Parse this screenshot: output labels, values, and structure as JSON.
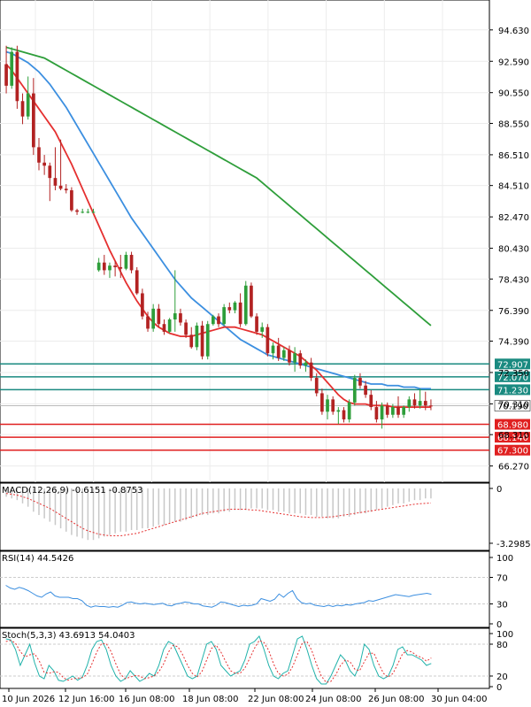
{
  "chart_data": [
    {
      "type": "candlestick",
      "panel": "price",
      "ylim": [
        65.5,
        96.0
      ],
      "y_ticks": [
        "94.630",
        "92.590",
        "90.550",
        "88.550",
        "86.510",
        "84.510",
        "82.470",
        "80.430",
        "78.430",
        "76.390",
        "74.390",
        "72.350",
        "70.310",
        "68.310",
        "66.270"
      ],
      "x_ticks": [
        "10 Jun 2026",
        "12 Jun 16:00",
        "16 Jun 08:00",
        "18 Jun 08:00",
        "22 Jun 08:00",
        "24 Jun 08:00",
        "26 Jun 08:00",
        "30 Jun 04:00"
      ],
      "candles": [
        [
          92.4,
          93.6,
          90.5,
          91.0
        ],
        [
          91.0,
          93.5,
          90.8,
          93.2
        ],
        [
          93.2,
          93.6,
          89.5,
          90.0
        ],
        [
          90.0,
          90.5,
          88.5,
          89.0
        ],
        [
          89.0,
          91.6,
          88.8,
          90.5
        ],
        [
          90.5,
          91.5,
          86.5,
          87.0
        ],
        [
          87.0,
          87.6,
          85.5,
          86.0
        ],
        [
          86.0,
          86.5,
          85.2,
          85.8
        ],
        [
          85.8,
          86.0,
          83.5,
          85.0
        ],
        [
          85.0,
          87.0,
          84.2,
          84.5
        ],
        [
          84.5,
          87.5,
          84.2,
          84.3
        ],
        [
          84.3,
          84.6,
          84.0,
          84.2
        ],
        [
          84.2,
          84.4,
          82.8,
          82.9
        ],
        [
          82.9,
          83.0,
          82.6,
          82.8
        ],
        [
          82.8,
          83.0,
          82.7,
          82.8
        ],
        [
          82.8,
          83.0,
          82.7,
          82.8
        ],
        [
          82.8,
          83.0,
          82.7,
          82.8
        ],
        [
          79.0,
          79.8,
          78.9,
          79.5
        ],
        [
          79.5,
          80.0,
          78.7,
          79.0
        ],
        [
          79.0,
          79.5,
          78.5,
          79.3
        ],
        [
          79.3,
          79.6,
          78.6,
          79.2
        ],
        [
          79.2,
          80.0,
          78.5,
          79.1
        ],
        [
          79.1,
          80.2,
          79.0,
          80.0
        ],
        [
          80.0,
          80.2,
          78.8,
          79.0
        ],
        [
          79.0,
          79.2,
          77.4,
          77.5
        ],
        [
          77.5,
          77.8,
          75.8,
          76.0
        ],
        [
          76.0,
          76.3,
          75.0,
          75.2
        ],
        [
          75.2,
          76.8,
          75.0,
          76.5
        ],
        [
          76.5,
          76.8,
          75.3,
          75.5
        ],
        [
          75.5,
          75.8,
          74.8,
          75.0
        ],
        [
          75.0,
          75.9,
          74.9,
          75.8
        ],
        [
          75.8,
          79.0,
          75.0,
          76.2
        ],
        [
          76.2,
          76.5,
          75.4,
          75.6
        ],
        [
          75.6,
          75.8,
          74.6,
          74.8
        ],
        [
          74.8,
          75.3,
          73.9,
          74.0
        ],
        [
          74.0,
          75.6,
          73.8,
          75.4
        ],
        [
          75.4,
          75.7,
          73.2,
          73.4
        ],
        [
          73.4,
          75.7,
          73.2,
          75.5
        ],
        [
          75.5,
          76.1,
          75.4,
          76.0
        ],
        [
          76.0,
          76.2,
          75.3,
          75.5
        ],
        [
          75.5,
          76.8,
          75.4,
          76.6
        ],
        [
          76.6,
          76.9,
          76.2,
          76.4
        ],
        [
          76.4,
          77.0,
          76.2,
          76.9
        ],
        [
          76.9,
          77.5,
          75.3,
          75.5
        ],
        [
          75.5,
          78.3,
          75.4,
          78.0
        ],
        [
          78.0,
          78.2,
          75.9,
          76.0
        ],
        [
          76.0,
          76.2,
          74.8,
          75.0
        ],
        [
          75.0,
          75.6,
          74.6,
          75.3
        ],
        [
          75.3,
          75.5,
          73.4,
          73.6
        ],
        [
          73.6,
          74.3,
          73.2,
          74.1
        ],
        [
          74.1,
          74.6,
          73.1,
          73.3
        ],
        [
          73.3,
          74.0,
          73.1,
          73.8
        ],
        [
          73.8,
          74.1,
          72.8,
          73.0
        ],
        [
          73.0,
          74.0,
          72.4,
          73.6
        ],
        [
          73.6,
          73.8,
          72.6,
          72.8
        ],
        [
          72.8,
          73.2,
          72.4,
          73.0
        ],
        [
          73.0,
          73.3,
          71.8,
          72.0
        ],
        [
          72.0,
          72.3,
          70.8,
          71.0
        ],
        [
          71.0,
          71.3,
          69.6,
          69.8
        ],
        [
          69.8,
          70.9,
          69.3,
          70.6
        ],
        [
          70.6,
          70.8,
          69.6,
          69.8
        ],
        [
          69.8,
          70.1,
          69.0,
          69.9
        ],
        [
          69.9,
          70.1,
          69.1,
          69.3
        ],
        [
          69.3,
          70.6,
          69.1,
          70.4
        ],
        [
          70.4,
          72.2,
          70.2,
          72.0
        ],
        [
          72.0,
          72.3,
          71.3,
          71.5
        ],
        [
          71.5,
          71.8,
          70.7,
          70.9
        ],
        [
          70.9,
          71.2,
          69.9,
          70.1
        ],
        [
          70.1,
          70.5,
          69.1,
          69.3
        ],
        [
          69.3,
          70.4,
          68.7,
          70.2
        ],
        [
          70.2,
          70.4,
          69.4,
          69.6
        ],
        [
          69.6,
          70.3,
          69.4,
          70.1
        ],
        [
          70.1,
          70.8,
          69.4,
          69.6
        ],
        [
          69.6,
          70.2,
          69.4,
          70.1
        ],
        [
          70.1,
          70.8,
          69.8,
          70.6
        ],
        [
          70.6,
          71.0,
          70.0,
          70.2
        ],
        [
          70.2,
          71.3,
          70.0,
          70.5
        ],
        [
          70.5,
          71.1,
          69.9,
          70.2
        ],
        [
          70.2,
          70.6,
          69.9,
          70.19
        ]
      ],
      "sma_red": [
        92.4,
        92.0,
        91.5,
        91.0,
        90.5,
        90.0,
        89.5,
        89.0,
        88.5,
        88.0,
        87.3,
        86.6,
        85.9,
        85.1,
        84.3,
        83.5,
        82.7,
        81.9,
        81.1,
        80.3,
        79.6,
        78.9,
        78.2,
        77.6,
        77.0,
        76.5,
        76.0,
        75.6,
        75.3,
        75.1,
        74.9,
        74.8,
        74.7,
        74.7,
        74.7,
        74.8,
        74.9,
        75.0,
        75.1,
        75.2,
        75.3,
        75.3,
        75.3,
        75.2,
        75.1,
        75.0,
        74.9,
        74.8,
        74.6,
        74.4,
        74.2,
        74.0,
        73.8,
        73.6,
        73.4,
        73.1,
        72.8,
        72.5,
        72.1,
        71.7,
        71.3,
        70.9,
        70.6,
        70.4,
        70.3,
        70.3,
        70.3,
        70.2,
        70.2,
        70.2,
        70.2,
        70.1,
        70.1,
        70.1,
        70.1,
        70.1,
        70.1,
        70.1,
        70.1
      ],
      "sma_blue": [
        93.2,
        93.1,
        92.9,
        92.7,
        92.5,
        92.2,
        91.9,
        91.5,
        91.1,
        90.6,
        90.1,
        89.6,
        89.0,
        88.4,
        87.8,
        87.2,
        86.6,
        86.0,
        85.4,
        84.8,
        84.2,
        83.6,
        83.0,
        82.4,
        81.9,
        81.4,
        80.9,
        80.4,
        79.9,
        79.4,
        78.9,
        78.4,
        78.0,
        77.6,
        77.2,
        76.9,
        76.6,
        76.3,
        76.0,
        75.7,
        75.4,
        75.1,
        74.8,
        74.5,
        74.3,
        74.1,
        73.9,
        73.7,
        73.5,
        73.4,
        73.3,
        73.2,
        73.1,
        73.0,
        72.9,
        72.8,
        72.7,
        72.6,
        72.5,
        72.4,
        72.3,
        72.2,
        72.1,
        72.0,
        71.9,
        71.8,
        71.7,
        71.6,
        71.6,
        71.6,
        71.5,
        71.5,
        71.5,
        71.4,
        71.4,
        71.4,
        71.3,
        71.3,
        71.3
      ],
      "sma_green": [
        93.5,
        93.4,
        93.3,
        93.2,
        93.1,
        93.0,
        92.9,
        92.8,
        92.6,
        92.4,
        92.2,
        92.0,
        91.8,
        91.6,
        91.4,
        91.2,
        91.0,
        90.8,
        90.6,
        90.4,
        90.2,
        90.0,
        89.8,
        89.6,
        89.4,
        89.2,
        89.0,
        88.8,
        88.6,
        88.4,
        88.2,
        88.0,
        87.8,
        87.6,
        87.4,
        87.2,
        87.0,
        86.8,
        86.6,
        86.4,
        86.2,
        86.0,
        85.8,
        85.6,
        85.4,
        85.2,
        85.0,
        84.7,
        84.4,
        84.1,
        83.8,
        83.5,
        83.2,
        82.9,
        82.6,
        82.3,
        82.0,
        81.7,
        81.4,
        81.1,
        80.8,
        80.5,
        80.2,
        79.9,
        79.6,
        79.3,
        79.0,
        78.7,
        78.4,
        78.1,
        77.8,
        77.5,
        77.2,
        76.9,
        76.6,
        76.3,
        76.0,
        75.7,
        75.4
      ],
      "levels": [
        {
          "value": 72.907,
          "label": "72.907",
          "color": "#1a8a80"
        },
        {
          "value": 72.07,
          "label": "72.070",
          "color": "#1a8a80"
        },
        {
          "value": 71.23,
          "label": "71.230",
          "color": "#1a8a80"
        },
        {
          "value": 68.98,
          "label": "68.980",
          "color": "#e02020"
        },
        {
          "value": 68.14,
          "label": "68.140",
          "color": "#e02020"
        },
        {
          "value": 67.3,
          "label": "67.300",
          "color": "#e02020"
        }
      ],
      "current_price": "70.190",
      "colors": {
        "bull": "#2e9e3a",
        "bear": "#b22222",
        "red_ma": "#e53030",
        "blue_ma": "#3c8fe0",
        "green_ma": "#2e9e3a"
      }
    },
    {
      "type": "bar",
      "panel": "MACD",
      "label": "MACD(12,26,9) -0.6151 -0.8753",
      "y_ticks": [
        "0",
        "-3.2985"
      ],
      "ylim": [
        -3.3,
        0
      ],
      "histogram": [
        -0.5,
        -0.6,
        -0.7,
        -0.9,
        -1.1,
        -1.4,
        -1.6,
        -1.8,
        -2.0,
        -2.2,
        -2.4,
        -2.6,
        -2.8,
        -2.9,
        -3.0,
        -3.1,
        -3.1,
        -3.0,
        -2.9,
        -2.8,
        -2.7,
        -2.6,
        -2.6,
        -2.5,
        -2.5,
        -2.4,
        -2.4,
        -2.3,
        -2.2,
        -2.2,
        -2.1,
        -2.0,
        -2.0,
        -1.9,
        -1.8,
        -1.7,
        -1.6,
        -1.6,
        -1.5,
        -1.5,
        -1.4,
        -1.4,
        -1.3,
        -1.3,
        -1.3,
        -1.2,
        -1.2,
        -1.2,
        -1.3,
        -1.3,
        -1.4,
        -1.4,
        -1.5,
        -1.5,
        -1.5,
        -1.6,
        -1.6,
        -1.7,
        -1.7,
        -1.8,
        -1.8,
        -1.8,
        -1.7,
        -1.7,
        -1.6,
        -1.5,
        -1.5,
        -1.4,
        -1.3,
        -1.2,
        -1.1,
        -1.0,
        -0.9,
        -0.9,
        -0.8,
        -0.7,
        -0.7,
        -0.6,
        -0.6
      ],
      "signal": [
        -0.3,
        -0.35,
        -0.4,
        -0.5,
        -0.6,
        -0.75,
        -0.9,
        -1.05,
        -1.2,
        -1.4,
        -1.6,
        -1.8,
        -2.0,
        -2.2,
        -2.4,
        -2.55,
        -2.65,
        -2.75,
        -2.8,
        -2.85,
        -2.85,
        -2.85,
        -2.8,
        -2.75,
        -2.7,
        -2.6,
        -2.5,
        -2.4,
        -2.3,
        -2.2,
        -2.1,
        -2.0,
        -1.9,
        -1.8,
        -1.7,
        -1.6,
        -1.5,
        -1.45,
        -1.4,
        -1.35,
        -1.3,
        -1.25,
        -1.25,
        -1.25,
        -1.25,
        -1.3,
        -1.3,
        -1.35,
        -1.4,
        -1.45,
        -1.5,
        -1.55,
        -1.6,
        -1.65,
        -1.7,
        -1.72,
        -1.75,
        -1.75,
        -1.75,
        -1.72,
        -1.7,
        -1.65,
        -1.6,
        -1.55,
        -1.5,
        -1.45,
        -1.4,
        -1.35,
        -1.3,
        -1.25,
        -1.2,
        -1.15,
        -1.1,
        -1.05,
        -1.0,
        -0.95,
        -0.92,
        -0.9,
        -0.88
      ]
    },
    {
      "type": "line",
      "panel": "RSI",
      "label": "RSI(14) 44.5426",
      "y_ticks": [
        "100",
        "70",
        "30",
        "0"
      ],
      "ylim": [
        0,
        100
      ],
      "values": [
        58,
        54,
        52,
        55,
        53,
        50,
        46,
        42,
        40,
        45,
        48,
        42,
        40,
        40,
        40,
        38,
        38,
        35,
        28,
        25,
        27,
        26,
        26,
        25,
        26,
        25,
        28,
        32,
        33,
        31,
        30,
        31,
        30,
        29,
        30,
        31,
        28,
        27,
        30,
        31,
        33,
        32,
        30,
        30,
        27,
        26,
        25,
        28,
        33,
        32,
        30,
        28,
        26,
        28,
        27,
        28,
        30,
        38,
        36,
        34,
        37,
        45,
        40,
        46,
        50,
        38,
        32,
        30,
        31,
        28,
        27,
        26,
        28,
        26,
        28,
        27,
        29,
        28,
        30,
        31,
        32,
        35,
        34,
        36,
        38,
        40,
        42,
        44,
        43,
        42,
        41,
        43,
        44,
        45,
        46,
        44.5
      ]
    },
    {
      "type": "line",
      "panel": "Stoch",
      "label": "Stoch(5,3,3) 43.6913 54.0403",
      "y_ticks": [
        "100",
        "80",
        "20",
        "0"
      ],
      "ylim": [
        0,
        100
      ],
      "k": [
        90,
        88,
        70,
        40,
        60,
        80,
        45,
        20,
        15,
        40,
        30,
        12,
        10,
        15,
        20,
        12,
        18,
        40,
        70,
        85,
        88,
        70,
        40,
        20,
        10,
        15,
        30,
        20,
        10,
        15,
        25,
        20,
        40,
        70,
        85,
        80,
        60,
        40,
        20,
        15,
        20,
        50,
        80,
        85,
        70,
        40,
        30,
        20,
        25,
        30,
        50,
        80,
        85,
        95,
        70,
        40,
        20,
        15,
        25,
        30,
        60,
        90,
        95,
        70,
        40,
        15,
        5,
        5,
        20,
        40,
        60,
        50,
        30,
        20,
        40,
        80,
        70,
        40,
        20,
        15,
        20,
        40,
        70,
        75,
        60,
        60,
        55,
        50,
        40,
        43.7
      ],
      "d": [
        85,
        87,
        82,
        66,
        56,
        60,
        62,
        48,
        27,
        25,
        28,
        27,
        17,
        12,
        15,
        16,
        17,
        23,
        43,
        65,
        81,
        81,
        66,
        43,
        23,
        15,
        18,
        21,
        20,
        15,
        17,
        20,
        28,
        43,
        65,
        78,
        75,
        60,
        40,
        25,
        18,
        28,
        50,
        72,
        78,
        65,
        47,
        30,
        25,
        25,
        35,
        53,
        72,
        87,
        83,
        68,
        43,
        25,
        20,
        23,
        38,
        60,
        82,
        85,
        68,
        42,
        20,
        8,
        10,
        22,
        40,
        50,
        47,
        33,
        30,
        47,
        63,
        63,
        43,
        25,
        18,
        25,
        43,
        62,
        68,
        65,
        58,
        55,
        48,
        54.0
      ]
    }
  ]
}
